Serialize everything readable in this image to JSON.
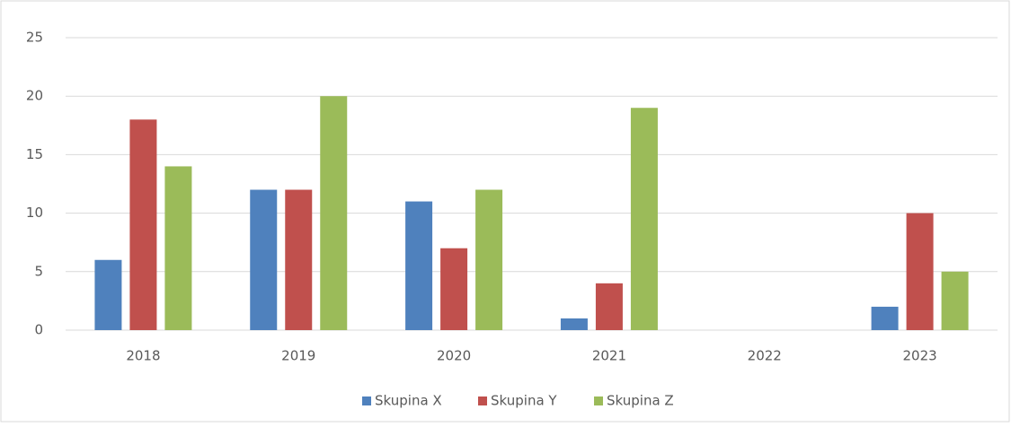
{
  "chart_data": {
    "type": "bar",
    "categories": [
      "2018",
      "2019",
      "2020",
      "2021",
      "2022",
      "2023"
    ],
    "series": [
      {
        "name": "Skupina X",
        "color": "#4f81bd",
        "values": [
          6,
          12,
          11,
          1,
          0,
          2
        ]
      },
      {
        "name": "Skupina Y",
        "color": "#c0504d",
        "values": [
          18,
          12,
          7,
          4,
          0,
          10
        ]
      },
      {
        "name": "Skupina Z",
        "color": "#9bbb59",
        "values": [
          14,
          20,
          12,
          19,
          0,
          5
        ]
      }
    ],
    "ylim": [
      0,
      25
    ],
    "yticks": [
      0,
      5,
      10,
      15,
      20,
      25
    ],
    "grid": true,
    "legend": "bottom"
  }
}
